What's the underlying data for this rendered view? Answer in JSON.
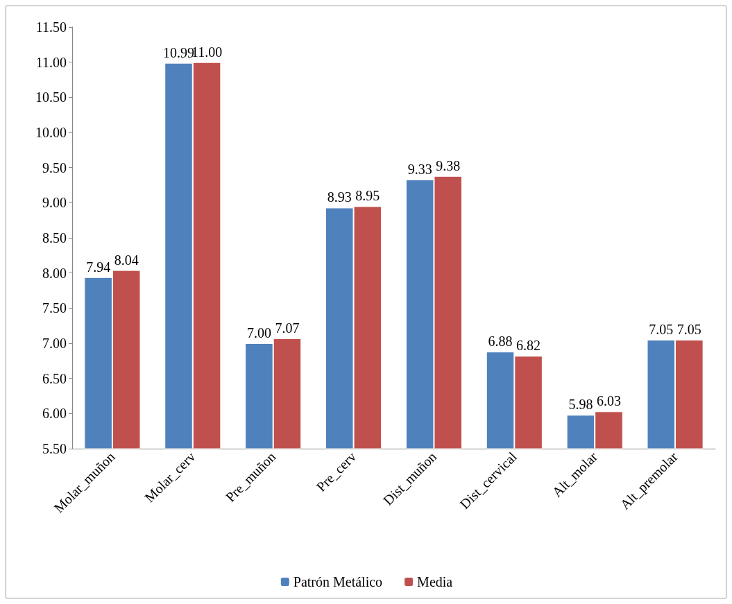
{
  "chart_data": {
    "type": "bar",
    "categories": [
      "Molar_muñon",
      "Molar_cerv",
      "Pre_muñon",
      "Pre_cerv",
      "Dist_muñon",
      "Dist_cervical",
      "Alt_molar",
      "Alt_premolar"
    ],
    "series": [
      {
        "name": "Patrón Metálico",
        "color": "#4f81bd",
        "values": [
          7.94,
          10.99,
          7.0,
          8.93,
          9.33,
          6.88,
          5.98,
          7.05
        ],
        "value_labels": [
          "7.94",
          "10.99",
          "7.00",
          "8.93",
          "9.33",
          "6.88",
          "5.98",
          "7.05"
        ]
      },
      {
        "name": "Media",
        "color": "#c0504d",
        "values": [
          8.04,
          11.0,
          7.07,
          8.95,
          9.38,
          6.82,
          6.03,
          7.05
        ],
        "value_labels": [
          "8.04",
          "11.00",
          "7.07",
          "8.95",
          "9.38",
          "6.82",
          "6.03",
          "7.05"
        ]
      }
    ],
    "ylim": [
      5.5,
      11.5
    ],
    "yticks": [
      {
        "value": 5.5,
        "label": "5.50"
      },
      {
        "value": 6,
        "label": "6.00"
      },
      {
        "value": 6.5,
        "label": "6.50"
      },
      {
        "value": 7,
        "label": "7.00"
      },
      {
        "value": 7.5,
        "label": "7.50"
      },
      {
        "value": 8,
        "label": "8.00"
      },
      {
        "value": 8.5,
        "label": "8.50"
      },
      {
        "value": 9,
        "label": "9.00"
      },
      {
        "value": 9.5,
        "label": "9.50"
      },
      {
        "value": 10,
        "label": "10.00"
      },
      {
        "value": 10.5,
        "label": "10.50"
      },
      {
        "value": 11,
        "label": "11.00"
      },
      {
        "value": 11.5,
        "label": "11.50"
      }
    ],
    "grid": false,
    "legend": "bottom"
  }
}
